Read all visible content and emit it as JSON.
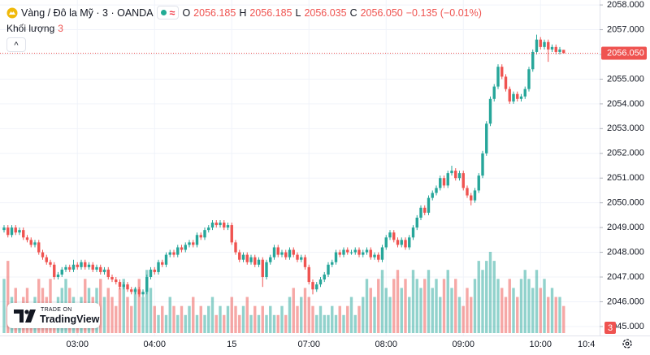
{
  "header": {
    "symbol": "Vàng / Đô la Mỹ · 3 · OANDA",
    "keys": [
      "O",
      "H",
      "L",
      "C"
    ],
    "change": "−0.135 (−0.01%)",
    "volume_label": "Khối lượng"
  },
  "branding": {
    "top": "TRADE ON",
    "name": "TradingView"
  },
  "chart_data": {
    "type": "candlestick",
    "categories": [
      null,
      null,
      null,
      null,
      null,
      null,
      null,
      null,
      null,
      null,
      null,
      null,
      null,
      null,
      null,
      null,
      null,
      null,
      null,
      "03:00",
      null,
      null,
      null,
      null,
      null,
      null,
      null,
      null,
      null,
      null,
      null,
      null,
      null,
      null,
      null,
      null,
      null,
      null,
      null,
      "04:00",
      null,
      null,
      null,
      null,
      null,
      null,
      null,
      null,
      null,
      null,
      null,
      null,
      null,
      null,
      null,
      null,
      null,
      null,
      null,
      "15",
      null,
      null,
      null,
      null,
      null,
      null,
      null,
      null,
      null,
      null,
      null,
      null,
      null,
      null,
      null,
      null,
      null,
      null,
      null,
      "07:00",
      null,
      null,
      null,
      null,
      null,
      null,
      null,
      null,
      null,
      null,
      null,
      null,
      null,
      null,
      null,
      null,
      null,
      null,
      null,
      "08:00",
      null,
      null,
      null,
      null,
      null,
      null,
      null,
      null,
      null,
      null,
      null,
      null,
      null,
      null,
      null,
      null,
      null,
      null,
      null,
      "09:00",
      null,
      null,
      null,
      null,
      null,
      null,
      null,
      null,
      null,
      null,
      null,
      null,
      null,
      null,
      null,
      null,
      null,
      null,
      null,
      "10:00",
      null,
      null,
      null,
      null,
      null,
      null
    ],
    "x_edge_label": "10:4",
    "open": [
      2048.9,
      2049.0,
      2048.7,
      2049.0,
      2048.8,
      2048.9,
      2048.6,
      2048.5,
      2048.3,
      2048.4,
      2048.0,
      2047.8,
      2047.6,
      2047.5,
      2047.0,
      2047.1,
      2047.3,
      2047.4,
      2047.3,
      2047.5,
      2047.4,
      2047.6,
      2047.4,
      2047.5,
      2047.3,
      2047.4,
      2047.2,
      2047.3,
      2047.0,
      2046.9,
      2046.8,
      2046.6,
      2046.7,
      2046.5,
      2046.4,
      2046.5,
      2046.3,
      2046.4,
      2047.0,
      2047.3,
      2047.2,
      2047.6,
      2047.5,
      2047.9,
      2048.0,
      2047.9,
      2048.2,
      2048.1,
      2048.3,
      2048.4,
      2048.3,
      2048.7,
      2048.6,
      2048.9,
      2049.0,
      2049.2,
      2049.1,
      2049.2,
      2049.0,
      2049.1,
      2048.4,
      2048.0,
      2047.7,
      2047.9,
      2047.6,
      2047.8,
      2047.5,
      2047.7,
      2047.0,
      2047.6,
      2047.8,
      2048.2,
      2047.9,
      2048.0,
      2047.8,
      2048.1,
      2047.9,
      2047.7,
      2047.8,
      2047.4,
      2046.8,
      2046.5,
      2046.7,
      2046.9,
      2047.1,
      2047.5,
      2047.6,
      2048.0,
      2047.9,
      2048.1,
      2048.0,
      2048.0,
      2048.1,
      2047.9,
      2048.0,
      2048.1,
      2047.8,
      2047.9,
      2047.7,
      2048.2,
      2048.6,
      2048.8,
      2048.5,
      2048.3,
      2048.5,
      2048.2,
      2048.6,
      2049.0,
      2049.4,
      2049.8,
      2049.6,
      2050.2,
      2050.4,
      2050.6,
      2051.0,
      2050.7,
      2051.2,
      2051.3,
      2051.0,
      2051.2,
      2050.6,
      2050.3,
      2050.1,
      2050.5,
      2051.1,
      2052.0,
      2053.2,
      2054.2,
      2054.7,
      2055.5,
      2055.1,
      2054.6,
      2054.1,
      2054.4,
      2054.2,
      2054.3,
      2054.6,
      2055.4,
      2056.1,
      2056.6,
      2056.3,
      2056.5,
      2056.2,
      2056.3,
      2056.1,
      2056.185
    ],
    "high": [
      2049.1,
      2049.1,
      2049.1,
      2049.1,
      2049.0,
      2049.0,
      2048.7,
      2048.6,
      2048.5,
      2048.5,
      2048.1,
      2047.9,
      2047.7,
      2047.6,
      2047.2,
      2047.4,
      2047.5,
      2047.5,
      2047.7,
      2047.6,
      2047.7,
      2047.7,
      2047.6,
      2047.6,
      2047.5,
      2047.5,
      2047.4,
      2047.4,
      2047.1,
      2047.0,
      2046.9,
      2046.8,
      2046.8,
      2046.6,
      2046.6,
      2046.6,
      2046.5,
      2047.1,
      2047.4,
      2047.4,
      2047.7,
      2047.7,
      2048.0,
      2048.1,
      2048.1,
      2048.3,
      2048.3,
      2048.4,
      2048.5,
      2048.5,
      2048.8,
      2048.8,
      2049.0,
      2049.1,
      2049.3,
      2049.3,
      2049.3,
      2049.3,
      2049.2,
      2049.2,
      2048.5,
      2048.1,
      2048.0,
      2048.0,
      2047.9,
      2047.9,
      2047.8,
      2047.8,
      2047.7,
      2047.9,
      2048.3,
      2048.3,
      2048.1,
      2048.1,
      2048.2,
      2048.2,
      2048.0,
      2047.9,
      2047.9,
      2047.5,
      2046.9,
      2046.8,
      2047.0,
      2047.2,
      2047.6,
      2047.7,
      2048.1,
      2048.1,
      2048.2,
      2048.2,
      2048.1,
      2048.2,
      2048.2,
      2048.1,
      2048.2,
      2048.2,
      2048.0,
      2048.0,
      2048.3,
      2048.7,
      2048.9,
      2048.9,
      2048.6,
      2048.6,
      2048.6,
      2048.7,
      2049.1,
      2049.5,
      2049.9,
      2049.9,
      2050.3,
      2050.5,
      2050.7,
      2051.1,
      2051.1,
      2051.3,
      2051.5,
      2051.4,
      2051.3,
      2051.3,
      2050.7,
      2050.4,
      2050.6,
      2051.2,
      2052.1,
      2053.3,
      2054.3,
      2054.8,
      2055.6,
      2055.6,
      2055.2,
      2054.7,
      2054.5,
      2054.5,
      2054.4,
      2054.7,
      2055.5,
      2056.2,
      2056.8,
      2056.7,
      2056.6,
      2056.6,
      2056.4,
      2056.4,
      2056.3,
      2056.185
    ],
    "low": [
      2048.8,
      2048.6,
      2048.6,
      2048.7,
      2048.7,
      2048.5,
      2048.4,
      2048.2,
      2048.2,
      2047.9,
      2047.7,
      2047.5,
      2047.4,
      2046.9,
      2046.9,
      2047.0,
      2047.2,
      2047.2,
      2047.2,
      2047.3,
      2047.3,
      2047.3,
      2047.3,
      2047.2,
      2047.2,
      2047.1,
      2047.1,
      2046.9,
      2046.8,
      2046.7,
      2046.5,
      2046.5,
      2046.4,
      2046.3,
      2046.3,
      2046.2,
      2046.2,
      2046.3,
      2046.9,
      2047.1,
      2047.1,
      2047.4,
      2047.4,
      2047.8,
      2047.8,
      2047.8,
      2048.0,
      2048.0,
      2048.2,
      2048.2,
      2048.2,
      2048.5,
      2048.5,
      2048.8,
      2048.9,
      2049.0,
      2049.0,
      2048.9,
      2048.9,
      2048.3,
      2047.9,
      2047.6,
      2047.6,
      2047.5,
      2047.5,
      2047.4,
      2047.4,
      2046.6,
      2046.9,
      2047.5,
      2047.7,
      2047.8,
      2047.8,
      2047.7,
      2047.7,
      2047.8,
      2047.6,
      2047.6,
      2047.3,
      2046.7,
      2046.3,
      2046.4,
      2046.6,
      2046.8,
      2047.0,
      2047.4,
      2047.5,
      2047.8,
      2047.8,
      2047.9,
      2047.9,
      2047.9,
      2047.8,
      2047.8,
      2047.9,
      2047.7,
      2047.7,
      2047.6,
      2047.6,
      2048.1,
      2048.5,
      2048.4,
      2048.2,
      2048.2,
      2048.1,
      2048.1,
      2048.5,
      2048.9,
      2049.3,
      2049.5,
      2049.5,
      2050.1,
      2050.3,
      2050.5,
      2050.6,
      2050.6,
      2051.1,
      2050.9,
      2050.9,
      2050.5,
      2050.2,
      2049.9,
      2050.0,
      2050.4,
      2051.0,
      2051.9,
      2053.1,
      2054.1,
      2054.6,
      2055.0,
      2054.5,
      2054.0,
      2054.0,
      2054.1,
      2054.1,
      2054.2,
      2054.5,
      2055.3,
      2056.0,
      2056.2,
      2056.2,
      2055.7,
      2056.1,
      2056.0,
      2056.0,
      2056.035
    ],
    "close": [
      2049.0,
      2048.7,
      2049.0,
      2048.8,
      2048.9,
      2048.6,
      2048.5,
      2048.3,
      2048.4,
      2048.0,
      2047.8,
      2047.6,
      2047.5,
      2047.0,
      2047.1,
      2047.3,
      2047.4,
      2047.3,
      2047.5,
      2047.4,
      2047.6,
      2047.4,
      2047.5,
      2047.3,
      2047.4,
      2047.2,
      2047.3,
      2047.0,
      2046.9,
      2046.8,
      2046.6,
      2046.7,
      2046.5,
      2046.4,
      2046.5,
      2046.3,
      2046.4,
      2047.0,
      2047.3,
      2047.2,
      2047.6,
      2047.5,
      2047.9,
      2048.0,
      2047.9,
      2048.2,
      2048.1,
      2048.3,
      2048.4,
      2048.3,
      2048.7,
      2048.6,
      2048.9,
      2049.0,
      2049.2,
      2049.1,
      2049.2,
      2049.0,
      2049.1,
      2048.4,
      2048.0,
      2047.7,
      2047.9,
      2047.6,
      2047.8,
      2047.5,
      2047.7,
      2047.0,
      2047.6,
      2047.8,
      2048.2,
      2047.9,
      2048.0,
      2047.8,
      2048.1,
      2047.9,
      2047.7,
      2047.8,
      2047.4,
      2046.8,
      2046.5,
      2046.7,
      2046.9,
      2047.1,
      2047.5,
      2047.6,
      2048.0,
      2047.9,
      2048.1,
      2048.0,
      2048.0,
      2048.1,
      2047.9,
      2048.0,
      2048.1,
      2047.8,
      2047.9,
      2047.7,
      2048.2,
      2048.6,
      2048.8,
      2048.5,
      2048.3,
      2048.5,
      2048.2,
      2048.6,
      2049.0,
      2049.4,
      2049.8,
      2049.6,
      2050.2,
      2050.4,
      2050.6,
      2051.0,
      2050.7,
      2051.2,
      2051.3,
      2051.0,
      2051.2,
      2050.6,
      2050.3,
      2050.1,
      2050.5,
      2051.1,
      2052.0,
      2053.2,
      2054.2,
      2054.7,
      2055.5,
      2055.1,
      2054.6,
      2054.1,
      2054.4,
      2054.2,
      2054.3,
      2054.6,
      2055.4,
      2056.1,
      2056.6,
      2056.3,
      2056.5,
      2056.2,
      2056.3,
      2056.1,
      2056.2,
      2056.05
    ],
    "volume": [
      6,
      8,
      4,
      5,
      3,
      4,
      5,
      3,
      4,
      6,
      5,
      4,
      6,
      3,
      4,
      5,
      6,
      5,
      4,
      3,
      4,
      6,
      5,
      4,
      5,
      6,
      4,
      5,
      4,
      3,
      5,
      6,
      4,
      3,
      5,
      6,
      4,
      7,
      5,
      3,
      2,
      3,
      2,
      4,
      3,
      2,
      3,
      2,
      3,
      4,
      2,
      3,
      2,
      3,
      4,
      2,
      3,
      2,
      3,
      4,
      3,
      2,
      3,
      4,
      2,
      3,
      2,
      3,
      2,
      3,
      2,
      2,
      3,
      2,
      4,
      5,
      3,
      4,
      5,
      4,
      3,
      2,
      3,
      2,
      2,
      3,
      2,
      3,
      2,
      3,
      4,
      2,
      3,
      4,
      6,
      5,
      4,
      6,
      7,
      5,
      4,
      6,
      7,
      5,
      6,
      4,
      7,
      6,
      5,
      6,
      7,
      5,
      6,
      4,
      6,
      7,
      5,
      6,
      4,
      3,
      5,
      4,
      6,
      8,
      7,
      8,
      9,
      8,
      6,
      5,
      4,
      6,
      5,
      4,
      6,
      7,
      6,
      5,
      7,
      5,
      6,
      4,
      5,
      4,
      4,
      3
    ],
    "last_price_label": "2056.050",
    "up_color": "#26a69a",
    "down_color": "#ef5350",
    "ylim": [
      2044.8,
      2058.2
    ],
    "yticks": [
      {
        "value": 2045,
        "label": "2045.000"
      },
      {
        "value": 2046,
        "label": "2046.000"
      },
      {
        "value": 2047,
        "label": "2047.000"
      },
      {
        "value": 2048,
        "label": "2048.000"
      },
      {
        "value": 2049,
        "label": "2049.000"
      },
      {
        "value": 2050,
        "label": "2050.000"
      },
      {
        "value": 2051,
        "label": "2051.000"
      },
      {
        "value": 2052,
        "label": "2052.000"
      },
      {
        "value": 2053,
        "label": "2053.000"
      },
      {
        "value": 2054,
        "label": "2054.000"
      },
      {
        "value": 2055,
        "label": "2055.000"
      },
      {
        "value": 2056,
        "label": "2056.000"
      },
      {
        "value": 2057,
        "label": "2057.000"
      },
      {
        "value": 2058,
        "label": "2058.000"
      }
    ],
    "grid": true
  }
}
